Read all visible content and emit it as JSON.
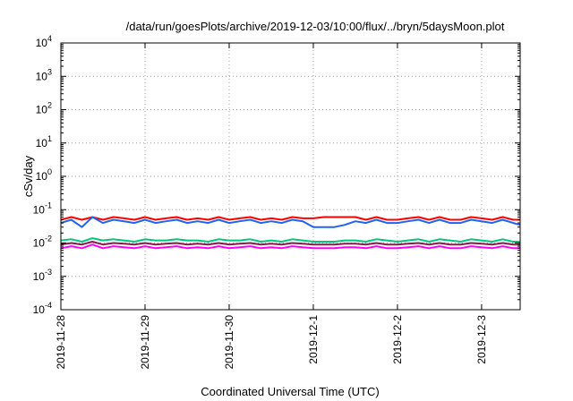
{
  "chart_data": {
    "type": "line",
    "title": "/data/run/goesPlots/archive/2019-12-03/10:00/flux/../bryn/5daysMoon.plot",
    "xlabel": "Coordinated Universal Time (UTC)",
    "ylabel": "cSv/day",
    "yscale": "log",
    "xlim": [
      "2019-11-28T00:00",
      "2019-12-03T11:00"
    ],
    "ylim": [
      0.0001,
      10000
    ],
    "grid": true,
    "x_ticks": [
      {
        "value": "2019-11-28",
        "label": "2019-11-28"
      },
      {
        "value": "2019-11-29",
        "label": "2019-11-29"
      },
      {
        "value": "2019-11-30",
        "label": "2019-11-30"
      },
      {
        "value": "2019-12-01",
        "label": "2019-12-1"
      },
      {
        "value": "2019-12-02",
        "label": "2019-12-2"
      },
      {
        "value": "2019-12-03",
        "label": "2019-12-3"
      }
    ],
    "y_ticks": [
      {
        "value": 0.0001,
        "base": "10",
        "exp": "-4"
      },
      {
        "value": 0.001,
        "base": "10",
        "exp": "-3"
      },
      {
        "value": 0.01,
        "base": "10",
        "exp": "-2"
      },
      {
        "value": 0.1,
        "base": "10",
        "exp": "-1"
      },
      {
        "value": 1,
        "base": "10",
        "exp": "0"
      },
      {
        "value": 10,
        "base": "10",
        "exp": "1"
      },
      {
        "value": 100,
        "base": "10",
        "exp": "2"
      },
      {
        "value": 1000,
        "base": "10",
        "exp": "3"
      },
      {
        "value": 10000,
        "base": "10",
        "exp": "4"
      }
    ],
    "x": [
      "2019-11-28T00:00",
      "2019-11-28T03:00",
      "2019-11-28T06:00",
      "2019-11-28T09:00",
      "2019-11-28T12:00",
      "2019-11-28T15:00",
      "2019-11-28T18:00",
      "2019-11-28T21:00",
      "2019-11-29T00:00",
      "2019-11-29T03:00",
      "2019-11-29T06:00",
      "2019-11-29T09:00",
      "2019-11-29T12:00",
      "2019-11-29T15:00",
      "2019-11-29T18:00",
      "2019-11-29T21:00",
      "2019-11-30T00:00",
      "2019-11-30T03:00",
      "2019-11-30T06:00",
      "2019-11-30T09:00",
      "2019-11-30T12:00",
      "2019-11-30T15:00",
      "2019-11-30T18:00",
      "2019-11-30T21:00",
      "2019-12-01T00:00",
      "2019-12-01T03:00",
      "2019-12-01T06:00",
      "2019-12-01T09:00",
      "2019-12-01T12:00",
      "2019-12-01T15:00",
      "2019-12-01T18:00",
      "2019-12-01T21:00",
      "2019-12-02T00:00",
      "2019-12-02T03:00",
      "2019-12-02T06:00",
      "2019-12-02T09:00",
      "2019-12-02T12:00",
      "2019-12-02T15:00",
      "2019-12-02T18:00",
      "2019-12-02T21:00",
      "2019-12-03T00:00",
      "2019-12-03T03:00",
      "2019-12-03T06:00",
      "2019-12-03T09:00",
      "2019-12-03T11:00"
    ],
    "series": [
      {
        "color": "#ff0000",
        "values": [
          0.05,
          0.06,
          0.05,
          0.06,
          0.05,
          0.06,
          0.055,
          0.05,
          0.06,
          0.05,
          0.055,
          0.06,
          0.05,
          0.055,
          0.05,
          0.06,
          0.05,
          0.055,
          0.06,
          0.05,
          0.055,
          0.05,
          0.06,
          0.055,
          0.055,
          0.06,
          0.06,
          0.06,
          0.06,
          0.05,
          0.06,
          0.05,
          0.05,
          0.055,
          0.06,
          0.05,
          0.06,
          0.05,
          0.05,
          0.06,
          0.055,
          0.05,
          0.06,
          0.05,
          0.05
        ]
      },
      {
        "color": "#1e64f0",
        "values": [
          0.04,
          0.05,
          0.03,
          0.06,
          0.04,
          0.05,
          0.045,
          0.04,
          0.05,
          0.04,
          0.045,
          0.05,
          0.04,
          0.045,
          0.04,
          0.05,
          0.04,
          0.045,
          0.05,
          0.04,
          0.045,
          0.04,
          0.05,
          0.045,
          0.03,
          0.03,
          0.03,
          0.035,
          0.045,
          0.04,
          0.05,
          0.04,
          0.04,
          0.045,
          0.05,
          0.04,
          0.05,
          0.04,
          0.04,
          0.05,
          0.045,
          0.04,
          0.05,
          0.04,
          0.035
        ]
      },
      {
        "color": "#00c878",
        "values": [
          0.012,
          0.013,
          0.011,
          0.014,
          0.012,
          0.013,
          0.012,
          0.011,
          0.013,
          0.012,
          0.012,
          0.013,
          0.012,
          0.012,
          0.011,
          0.013,
          0.012,
          0.012,
          0.013,
          0.011,
          0.012,
          0.011,
          0.013,
          0.012,
          0.011,
          0.011,
          0.011,
          0.012,
          0.012,
          0.011,
          0.013,
          0.012,
          0.011,
          0.012,
          0.013,
          0.011,
          0.013,
          0.012,
          0.011,
          0.013,
          0.012,
          0.011,
          0.013,
          0.011,
          0.011
        ]
      },
      {
        "color": "#8b1a4a",
        "values": [
          0.009,
          0.01,
          0.009,
          0.011,
          0.009,
          0.01,
          0.0095,
          0.009,
          0.01,
          0.009,
          0.0095,
          0.01,
          0.009,
          0.0095,
          0.009,
          0.01,
          0.009,
          0.0095,
          0.01,
          0.009,
          0.0095,
          0.009,
          0.01,
          0.0095,
          0.009,
          0.009,
          0.009,
          0.0095,
          0.0095,
          0.009,
          0.01,
          0.009,
          0.009,
          0.0095,
          0.01,
          0.009,
          0.01,
          0.009,
          0.009,
          0.01,
          0.0095,
          0.009,
          0.01,
          0.009,
          0.009
        ]
      },
      {
        "color": "#ff00ff",
        "values": [
          0.007,
          0.008,
          0.007,
          0.009,
          0.007,
          0.008,
          0.0075,
          0.007,
          0.008,
          0.007,
          0.0075,
          0.008,
          0.007,
          0.0075,
          0.007,
          0.008,
          0.007,
          0.0075,
          0.008,
          0.007,
          0.0075,
          0.007,
          0.008,
          0.0075,
          0.007,
          0.007,
          0.007,
          0.0075,
          0.0075,
          0.007,
          0.008,
          0.007,
          0.007,
          0.0075,
          0.008,
          0.007,
          0.008,
          0.007,
          0.007,
          0.008,
          0.0075,
          0.007,
          0.008,
          0.007,
          0.007
        ]
      }
    ]
  }
}
